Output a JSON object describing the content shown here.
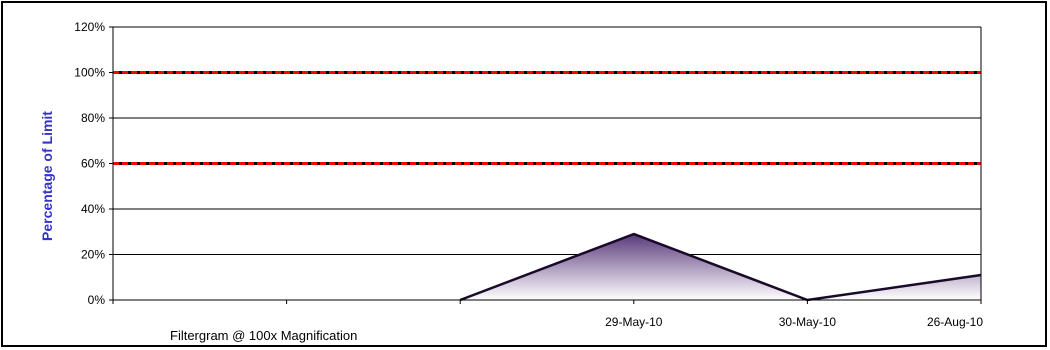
{
  "chart_data": {
    "type": "area",
    "ylabel": "Percentage of Limit",
    "xlabel": "",
    "ylim": [
      0,
      120
    ],
    "yticks": [
      "0%",
      "20%",
      "40%",
      "60%",
      "80%",
      "100%",
      "120%"
    ],
    "categories": [
      "",
      "",
      "",
      "29-May-10",
      "30-May-10",
      "26-Aug-10"
    ],
    "series": [
      {
        "values": [
          null,
          null,
          0,
          29,
          0,
          11
        ]
      }
    ],
    "reference_lines": [
      {
        "value": 100,
        "color": "#ff0000"
      },
      {
        "value": 60,
        "color": "#ff0000"
      }
    ],
    "annotation": "Filtergram @ 100x Magnification",
    "grid": true,
    "legend": "none"
  },
  "colors": {
    "area_top": "#6a4a8a",
    "area_bottom": "#ffffff",
    "reference": "#ff0000",
    "axis_label": "#3333cc"
  }
}
